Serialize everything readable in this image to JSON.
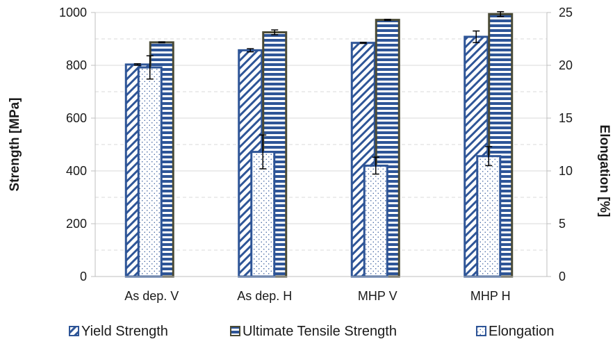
{
  "chart_data": {
    "type": "bar",
    "categories": [
      "As dep. V",
      "As dep. H",
      "MHP V",
      "MHP H"
    ],
    "series": [
      {
        "name": "Yield Strength",
        "axis": "left",
        "pattern": "diagonal-stripes",
        "values": [
          803,
          857,
          885,
          908
        ],
        "errors": [
          3,
          6,
          2,
          22
        ]
      },
      {
        "name": "Ultimate Tensile Strength",
        "axis": "left",
        "pattern": "horizontal-stripes",
        "values": [
          887,
          925,
          972,
          994
        ],
        "errors": [
          2,
          9,
          2,
          9
        ]
      },
      {
        "name": "Elongation",
        "axis": "right",
        "pattern": "dots",
        "values": [
          19.8,
          11.8,
          10.5,
          11.4
        ],
        "errors": [
          1.1,
          1.6,
          0.8,
          0.9
        ]
      }
    ],
    "yleft": {
      "label": "Strength [MPa]",
      "lim": [
        0,
        1000
      ],
      "ticks": [
        0,
        200,
        400,
        600,
        800,
        1000
      ]
    },
    "yright": {
      "label": "Elongation [%]",
      "lim": [
        0,
        25
      ],
      "ticks": [
        0,
        5,
        10,
        15,
        20,
        25
      ]
    },
    "grid": true,
    "legend": "bottom"
  },
  "colors": {
    "bar_blue": "#2e5597",
    "uts_border": "#4a4a35",
    "grid": "#d9d9d9",
    "axis": "#bfbfbf",
    "error_bar": "#000000"
  }
}
